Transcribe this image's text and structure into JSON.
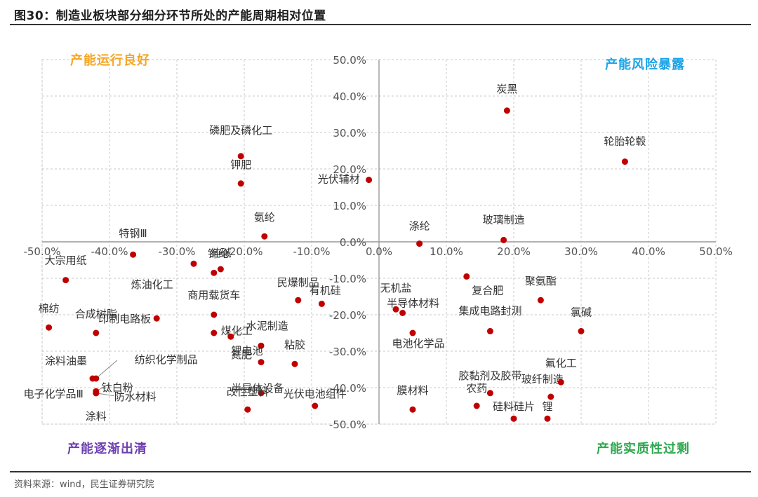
{
  "title": "图30：制造业板块部分细分环节所处的产能周期相对位置",
  "source": "资料来源：wind，民生证券研究院",
  "quadrants": {
    "top_left": "产能运行良好",
    "top_right": "产能风险暴露",
    "bottom_left": "产能逐渐出清",
    "bottom_right": "产能实质性过剩"
  },
  "colors": {
    "point": "#c00000",
    "grid": "#c8c8c8",
    "axis": "#999999"
  },
  "chart_data": {
    "type": "scatter",
    "title": "",
    "xlabel": "",
    "ylabel": "",
    "xlim": [
      -50,
      50
    ],
    "ylim": [
      -50,
      50
    ],
    "x_ticks": [
      "-50.0%",
      "-40.0%",
      "-30.0%",
      "-20.0%",
      "-10.0%",
      "0.0%",
      "10.0%",
      "20.0%",
      "30.0%",
      "40.0%",
      "50.0%"
    ],
    "y_ticks": [
      "50.0%",
      "40.0%",
      "30.0%",
      "20.0%",
      "10.0%",
      "0.0%",
      "-10.0%",
      "-20.0%",
      "-30.0%",
      "-40.0%",
      "-50.0%"
    ],
    "points": [
      {
        "label": "炭黑",
        "x": 19,
        "y": 36
      },
      {
        "label": "轮胎轮毂",
        "x": 36.5,
        "y": 22
      },
      {
        "label": "光伏辅材",
        "x": -1.5,
        "y": 17
      },
      {
        "label": "磷肥及磷化工",
        "x": -20.5,
        "y": 23.5
      },
      {
        "label": "钾肥",
        "x": -20.5,
        "y": 16
      },
      {
        "label": "氨纶",
        "x": -17,
        "y": 1.5
      },
      {
        "label": "涤纶",
        "x": 6,
        "y": -0.5
      },
      {
        "label": "玻璃制造",
        "x": 18.5,
        "y": 0.5
      },
      {
        "label": "特钢Ⅲ",
        "x": -36.5,
        "y": -3.5
      },
      {
        "label": "锦纶",
        "x": -27.5,
        "y": -6
      },
      {
        "label": "纯碱",
        "x": -23.5,
        "y": -7.5
      },
      {
        "label": "炼油化工",
        "x": -24.5,
        "y": -8.5
      },
      {
        "label": "大宗用纸",
        "x": -46.5,
        "y": -10.5
      },
      {
        "label": "复合肥",
        "x": 13,
        "y": -9.5
      },
      {
        "label": "聚氨酯",
        "x": 24,
        "y": -16
      },
      {
        "label": "民爆制品",
        "x": -12,
        "y": -16
      },
      {
        "label": "有机硅",
        "x": -8.5,
        "y": -17
      },
      {
        "label": "无机盐",
        "x": 2.5,
        "y": -18.5
      },
      {
        "label": "半导体材料",
        "x": 3.5,
        "y": -19.5
      },
      {
        "label": "商用载货车",
        "x": -24.5,
        "y": -20
      },
      {
        "label": "棉纺",
        "x": -49,
        "y": -23.5
      },
      {
        "label": "合成树脂",
        "x": -42,
        "y": -25
      },
      {
        "label": "印制电路板",
        "x": -33,
        "y": -21
      },
      {
        "label": "煤化工",
        "x": -24.5,
        "y": -25
      },
      {
        "label": "集成电路封测",
        "x": 16.5,
        "y": -24.5
      },
      {
        "label": "氯碱",
        "x": 30,
        "y": -24.5
      },
      {
        "label": "电池化学品",
        "x": 5,
        "y": -25
      },
      {
        "label": "水泥制造",
        "x": -22,
        "y": -26
      },
      {
        "label": "氮肥",
        "x": -17.5,
        "y": -28.5
      },
      {
        "label": "锂电池",
        "x": -17.5,
        "y": -33
      },
      {
        "label": "粘胶",
        "x": -12.5,
        "y": -33.5
      },
      {
        "label": "涂料油墨",
        "x": -42.5,
        "y": -37.5
      },
      {
        "label": "纺织化学制品",
        "x": -42,
        "y": -37.5
      },
      {
        "label": "钛白粉",
        "x": -42,
        "y": -41
      },
      {
        "label": "半导体设备",
        "x": -17.5,
        "y": -41.5
      },
      {
        "label": "电子化学品Ⅲ",
        "x": -42,
        "y": -41.5
      },
      {
        "label": "防水材料",
        "x": -42,
        "y": -41.5
      },
      {
        "label": "改性塑料",
        "x": -19.5,
        "y": -46
      },
      {
        "label": "光伏电池组件",
        "x": -9.5,
        "y": -45
      },
      {
        "label": "氟化工",
        "x": 27,
        "y": -38.5
      },
      {
        "label": "玻纤制造",
        "x": 25.5,
        "y": -42.5
      },
      {
        "label": "胶黏剂及胶带",
        "x": 16.5,
        "y": -41.5
      },
      {
        "label": "农药",
        "x": 14.5,
        "y": -45
      },
      {
        "label": "膜材料",
        "x": 5,
        "y": -46
      },
      {
        "label": "硅料硅片",
        "x": 20,
        "y": -48.5
      },
      {
        "label": "锂",
        "x": 25,
        "y": -48.5
      },
      {
        "label": "涂料",
        "x": -42,
        "y": -41.5
      }
    ]
  }
}
